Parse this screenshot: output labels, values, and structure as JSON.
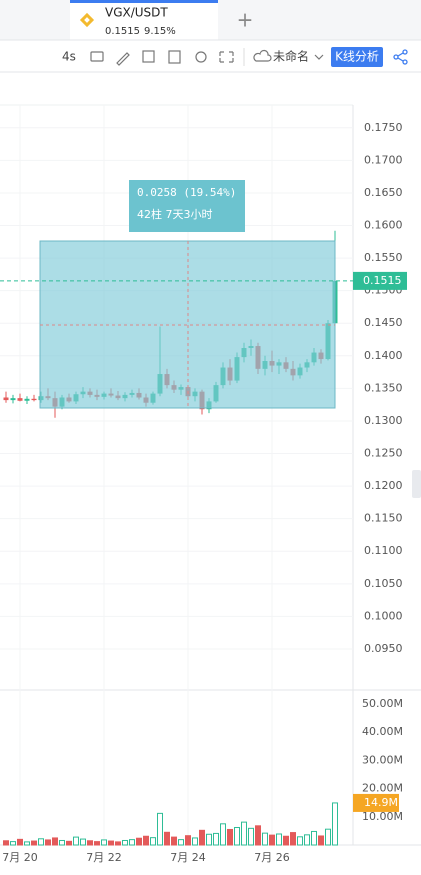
{
  "tab": {
    "symbol": "VGX/USDT",
    "price": "0.1515",
    "change": "9.15%"
  },
  "toolbar": {
    "interval": "4s",
    "layout_name": "未命名",
    "analysis_button": "K线分析"
  },
  "chart_data": {
    "type": "candlestick",
    "categories": [
      null,
      null,
      "7月 20",
      null,
      null,
      null,
      null,
      null,
      null,
      null,
      null,
      null,
      null,
      null,
      "7月 22",
      null,
      null,
      null,
      null,
      null,
      null,
      null,
      null,
      null,
      null,
      null,
      "7月 24",
      null,
      null,
      null,
      null,
      null,
      null,
      null,
      null,
      null,
      null,
      null,
      "7月 26",
      null,
      null,
      null,
      null,
      null,
      null,
      null,
      null,
      null
    ],
    "open": [
      0.1336,
      0.1332,
      0.1335,
      0.1331,
      0.1334,
      0.1332,
      0.1338,
      0.1335,
      0.1322,
      0.1336,
      0.133,
      0.1341,
      0.1345,
      0.134,
      0.1337,
      0.1342,
      0.1339,
      0.1335,
      0.134,
      0.1343,
      0.1336,
      0.1328,
      0.1342,
      0.1372,
      0.1355,
      0.1348,
      0.1352,
      0.1338,
      0.1345,
      0.1318,
      0.133,
      0.1355,
      0.1382,
      0.1362,
      0.1398,
      0.1412,
      0.1415,
      0.138,
      0.1392,
      0.1385,
      0.139,
      0.138,
      0.137,
      0.1382,
      0.139,
      0.1405,
      0.1395,
      0.145
    ],
    "high": [
      0.1345,
      0.134,
      0.1342,
      0.1338,
      0.134,
      0.1345,
      0.135,
      0.1345,
      0.134,
      0.1342,
      0.1345,
      0.1352,
      0.135,
      0.1348,
      0.1345,
      0.135,
      0.1346,
      0.1344,
      0.1348,
      0.135,
      0.1342,
      0.1345,
      0.1445,
      0.138,
      0.1362,
      0.1356,
      0.1355,
      0.135,
      0.1348,
      0.1335,
      0.136,
      0.139,
      0.1395,
      0.1405,
      0.142,
      0.1425,
      0.142,
      0.14,
      0.1408,
      0.1395,
      0.1398,
      0.1392,
      0.1388,
      0.1395,
      0.1412,
      0.141,
      0.1455,
      0.1592
    ],
    "low": [
      0.1328,
      0.1327,
      0.133,
      0.1326,
      0.133,
      0.1328,
      0.1332,
      0.1305,
      0.1318,
      0.1328,
      0.1326,
      0.1335,
      0.1336,
      0.1332,
      0.1333,
      0.1336,
      0.1332,
      0.133,
      0.1336,
      0.1333,
      0.1322,
      0.1325,
      0.1338,
      0.135,
      0.1343,
      0.134,
      0.1335,
      0.133,
      0.131,
      0.1312,
      0.1328,
      0.135,
      0.1355,
      0.1358,
      0.139,
      0.14,
      0.1372,
      0.137,
      0.1375,
      0.1372,
      0.1375,
      0.1362,
      0.1365,
      0.1375,
      0.1385,
      0.1388,
      0.1393,
      0.1448
    ],
    "close": [
      0.1332,
      0.1335,
      0.1331,
      0.1334,
      0.1332,
      0.1338,
      0.1335,
      0.1322,
      0.1336,
      0.133,
      0.1341,
      0.1345,
      0.134,
      0.1337,
      0.1342,
      0.1339,
      0.1335,
      0.134,
      0.1343,
      0.1336,
      0.1328,
      0.1342,
      0.1372,
      0.1355,
      0.1348,
      0.1352,
      0.1338,
      0.1345,
      0.1318,
      0.133,
      0.1355,
      0.1382,
      0.1362,
      0.1398,
      0.1412,
      0.1415,
      0.138,
      0.1392,
      0.1385,
      0.139,
      0.138,
      0.137,
      0.1382,
      0.139,
      0.1405,
      0.1395,
      0.145,
      0.1515
    ],
    "volume": [
      1.5,
      1.2,
      2,
      1.1,
      1.4,
      2.2,
      1.8,
      2.5,
      1.6,
      1.3,
      2.8,
      2.1,
      1.5,
      1.2,
      1.8,
      1.4,
      1.1,
      1.6,
      1.9,
      2.4,
      3.1,
      2.6,
      11.2,
      4.5,
      2.8,
      1.9,
      3.3,
      2.5,
      5.2,
      3.8,
      4.1,
      7.5,
      5.5,
      6.2,
      8.1,
      5.9,
      6.8,
      4.2,
      3.5,
      3.9,
      3.1,
      4.4,
      2.9,
      3.6,
      4.8,
      3.2,
      5.6,
      14.9
    ],
    "ylim": [
      0.0887,
      0.1785
    ],
    "yticks": [
      {
        "value": 0.095,
        "label": "0.0950"
      },
      {
        "value": 0.1,
        "label": "0.1000"
      },
      {
        "value": 0.105,
        "label": "0.1050"
      },
      {
        "value": 0.11,
        "label": "0.1100"
      },
      {
        "value": 0.115,
        "label": "0.1150"
      },
      {
        "value": 0.12,
        "label": "0.1200"
      },
      {
        "value": 0.125,
        "label": "0.1250"
      },
      {
        "value": 0.13,
        "label": "0.1300"
      },
      {
        "value": 0.135,
        "label": "0.1350"
      },
      {
        "value": 0.14,
        "label": "0.1400"
      },
      {
        "value": 0.145,
        "label": "0.1450"
      },
      {
        "value": 0.15,
        "label": "0.1500"
      },
      {
        "value": 0.155,
        "label": "0.1550"
      },
      {
        "value": 0.16,
        "label": "0.1600"
      },
      {
        "value": 0.165,
        "label": "0.1650"
      },
      {
        "value": 0.17,
        "label": "0.1700"
      },
      {
        "value": 0.175,
        "label": "0.1750"
      }
    ],
    "volume_ylim": [
      0,
      54.9
    ],
    "volume_yticks": [
      {
        "value": 10,
        "label": "10.00M"
      },
      {
        "value": 20,
        "label": "20.00M"
      },
      {
        "value": 30,
        "label": "30.00M"
      },
      {
        "value": 40,
        "label": "40.00M"
      },
      {
        "value": 50,
        "label": "50.00M"
      }
    ],
    "current_price": {
      "value": 0.1515,
      "label": "0.1515"
    },
    "current_volume": {
      "value": 14.9,
      "label": "14.9M"
    },
    "measure": {
      "change": "0.0258 (19.54%)",
      "span": "42柱 7天3小时"
    },
    "up_color": "#2ebd96",
    "down_color": "#e35a5a",
    "grid": true
  }
}
